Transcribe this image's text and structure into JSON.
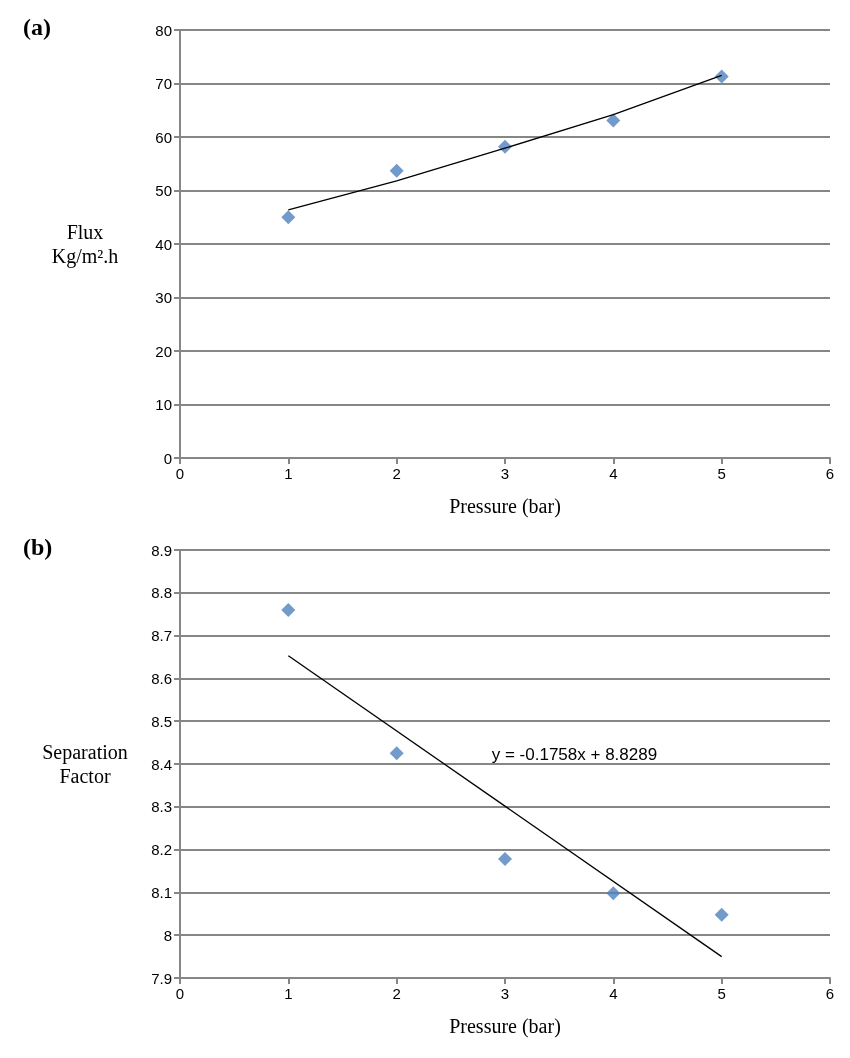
{
  "chart_data": [
    {
      "type": "scatter",
      "title": "(a)",
      "xlabel": "Pressure (bar)",
      "ylabel": "Flux Kg/m².h",
      "xlim": [
        0,
        6
      ],
      "xticks": [
        0,
        1,
        2,
        3,
        4,
        5,
        6
      ],
      "ylim": [
        0,
        80
      ],
      "yticks": [
        0,
        10,
        20,
        30,
        40,
        50,
        60,
        70,
        80
      ],
      "grid": "y",
      "marker": "diamond",
      "series": [
        {
          "color": "#4f81bd",
          "x": [
            1,
            2,
            3,
            4,
            5
          ],
          "values": [
            45,
            53.7,
            58.2,
            63.1,
            71.3
          ]
        },
        {
          "type": "line",
          "color": "#000000",
          "marker": "none",
          "x": [
            1,
            2,
            3,
            4,
            5
          ],
          "values": [
            46.4,
            51.8,
            57.9,
            64.2,
            71.5
          ]
        }
      ]
    },
    {
      "type": "scatter",
      "title": "(b)",
      "xlabel": "Pressure (bar)",
      "ylabel": "Separation Factor",
      "xlim": [
        0,
        6
      ],
      "xticks": [
        0,
        1,
        2,
        3,
        4,
        5,
        6
      ],
      "ylim": [
        7.9,
        8.9
      ],
      "yticks": [
        7.9,
        8,
        8.1,
        8.2,
        8.3,
        8.4,
        8.5,
        8.6,
        8.7,
        8.8,
        8.9
      ],
      "grid": "y",
      "marker": "diamond",
      "annotations": [
        "y = -0.1758x + 8.8289"
      ],
      "series": [
        {
          "color": "#4f81bd",
          "x": [
            1,
            2,
            3,
            4,
            5
          ],
          "values": [
            8.76,
            8.425,
            8.178,
            8.098,
            8.048
          ]
        },
        {
          "type": "line",
          "color": "#000000",
          "marker": "none",
          "x": [
            1,
            5
          ],
          "values": [
            8.653,
            7.95
          ]
        }
      ]
    }
  ]
}
